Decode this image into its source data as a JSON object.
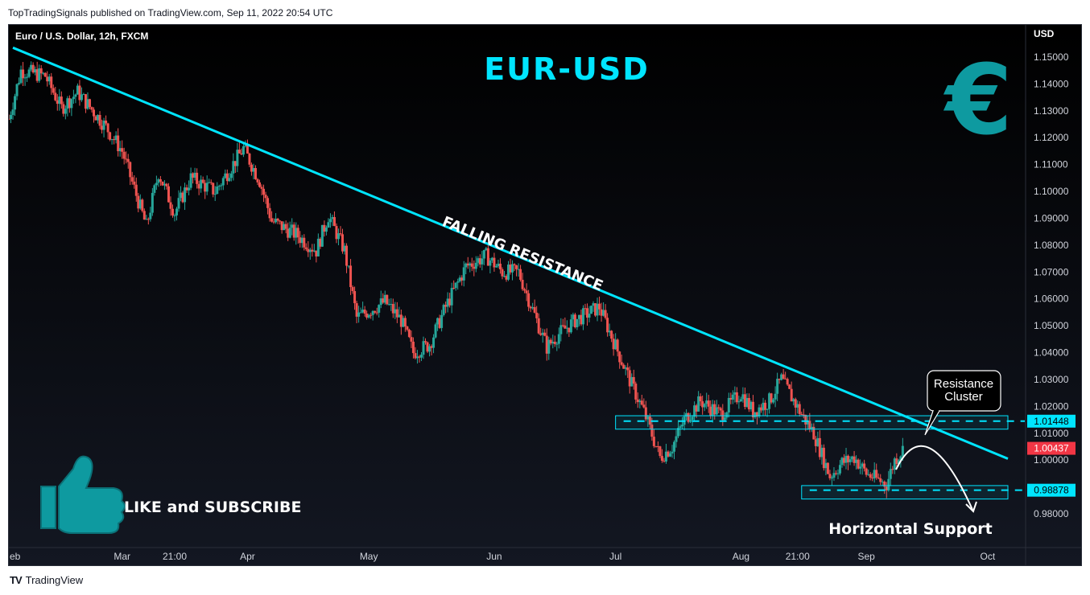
{
  "header": {
    "published": "TopTradingSignals published on TradingView.com, Sep 11, 2022 20:54 UTC"
  },
  "footer": {
    "brand": "TradingView"
  },
  "chart_data": {
    "type": "candlestick",
    "instrument": "Euro / U.S. Dollar, 12h, FXCM",
    "title": "EUR-USD",
    "currency_label": "USD",
    "ylim": [
      0.977,
      1.1535
    ],
    "y_ticks": [
      "1.15000",
      "1.14000",
      "1.13000",
      "1.12000",
      "1.11000",
      "1.10000",
      "1.09000",
      "1.08000",
      "1.07000",
      "1.06000",
      "1.05000",
      "1.04000",
      "1.03000",
      "1.02000",
      "1.01000",
      "1.00000",
      "0.98000"
    ],
    "x_ticks": [
      {
        "label": "eb",
        "x": "2022-02-01"
      },
      {
        "label": "Mar",
        "x": "2022-03-01"
      },
      {
        "label": "21:00",
        "x": "2022-03-14"
      },
      {
        "label": "Apr",
        "x": "2022-04-01"
      },
      {
        "label": "May",
        "x": "2022-05-01"
      },
      {
        "label": "Jun",
        "x": "2022-06-01"
      },
      {
        "label": "Jul",
        "x": "2022-07-01"
      },
      {
        "label": "Aug",
        "x": "2022-08-01"
      },
      {
        "label": "21:00",
        "x": "2022-08-15"
      },
      {
        "label": "Sep",
        "x": "2022-09-01"
      },
      {
        "label": "Oct",
        "x": "2022-10-01"
      }
    ],
    "xlim": [
      "2022-02-01",
      "2022-10-06"
    ],
    "price_path": [
      [
        "2022-02-01",
        1.127
      ],
      [
        "2022-02-04",
        1.145
      ],
      [
        "2022-02-10",
        1.143
      ],
      [
        "2022-02-14",
        1.131
      ],
      [
        "2022-02-18",
        1.137
      ],
      [
        "2022-02-25",
        1.124
      ],
      [
        "2022-03-01",
        1.115
      ],
      [
        "2022-03-07",
        1.087
      ],
      [
        "2022-03-10",
        1.107
      ],
      [
        "2022-03-14",
        1.092
      ],
      [
        "2022-03-18",
        1.105
      ],
      [
        "2022-03-24",
        1.1
      ],
      [
        "2022-03-31",
        1.116
      ],
      [
        "2022-04-04",
        1.104
      ],
      [
        "2022-04-07",
        1.089
      ],
      [
        "2022-04-13",
        1.084
      ],
      [
        "2022-04-18",
        1.078
      ],
      [
        "2022-04-21",
        1.091
      ],
      [
        "2022-04-25",
        1.078
      ],
      [
        "2022-04-28",
        1.053
      ],
      [
        "2022-05-05",
        1.059
      ],
      [
        "2022-05-09",
        1.052
      ],
      [
        "2022-05-12",
        1.04
      ],
      [
        "2022-05-16",
        1.043
      ],
      [
        "2022-05-20",
        1.057
      ],
      [
        "2022-05-25",
        1.072
      ],
      [
        "2022-05-30",
        1.076
      ],
      [
        "2022-06-03",
        1.07
      ],
      [
        "2022-06-07",
        1.07
      ],
      [
        "2022-06-09",
        1.062
      ],
      [
        "2022-06-14",
        1.042
      ],
      [
        "2022-06-17",
        1.047
      ],
      [
        "2022-06-21",
        1.052
      ],
      [
        "2022-06-27",
        1.057
      ],
      [
        "2022-06-30",
        1.046
      ],
      [
        "2022-07-05",
        1.028
      ],
      [
        "2022-07-08",
        1.018
      ],
      [
        "2022-07-12",
        1.001
      ],
      [
        "2022-07-15",
        1.005
      ],
      [
        "2022-07-18",
        1.015
      ],
      [
        "2022-07-22",
        1.022
      ],
      [
        "2022-07-27",
        1.017
      ],
      [
        "2022-08-01",
        1.025
      ],
      [
        "2022-08-04",
        1.018
      ],
      [
        "2022-08-08",
        1.022
      ],
      [
        "2022-08-11",
        1.03
      ],
      [
        "2022-08-16",
        1.017
      ],
      [
        "2022-08-19",
        1.01
      ],
      [
        "2022-08-23",
        0.994
      ],
      [
        "2022-08-26",
        0.999
      ],
      [
        "2022-08-29",
        1.001
      ],
      [
        "2022-09-01",
        0.995
      ],
      [
        "2022-09-06",
        0.991
      ],
      [
        "2022-09-08",
        1.0
      ],
      [
        "2022-09-10",
        1.004
      ]
    ],
    "price_tags": [
      {
        "label": "1.01448",
        "value": 1.01448,
        "bg": "#00e5ff",
        "fg": "#000000"
      },
      {
        "label": "1.00437",
        "value": 1.00437,
        "bg": "#f23645",
        "fg": "#ffffff"
      },
      {
        "label": "0.98878",
        "value": 0.98878,
        "bg": "#00e5ff",
        "fg": "#000000"
      }
    ],
    "trendline": {
      "label": "FALLING RESISTANCE",
      "from": [
        "2022-02-02",
        1.1535
      ],
      "to": [
        "2022-10-06",
        1.0005
      ]
    },
    "resistance_zone": {
      "from": "2022-07-01",
      "to": "2022-10-06",
      "low": 1.0115,
      "high": 1.0165,
      "level": 1.01448
    },
    "support_zone": {
      "from": "2022-08-16",
      "to": "2022-10-06",
      "low": 0.9855,
      "high": 0.9905,
      "level": 0.98878,
      "label": "Horizontal Support"
    },
    "callout": "Resistance\nCluster",
    "cta": "LIKE and SUBSCRIBE",
    "colors": {
      "up": "#26a69a",
      "down": "#ef5350",
      "accent": "#00e5ff",
      "teal": "#0e9aa0",
      "text": "#ffffff"
    }
  }
}
